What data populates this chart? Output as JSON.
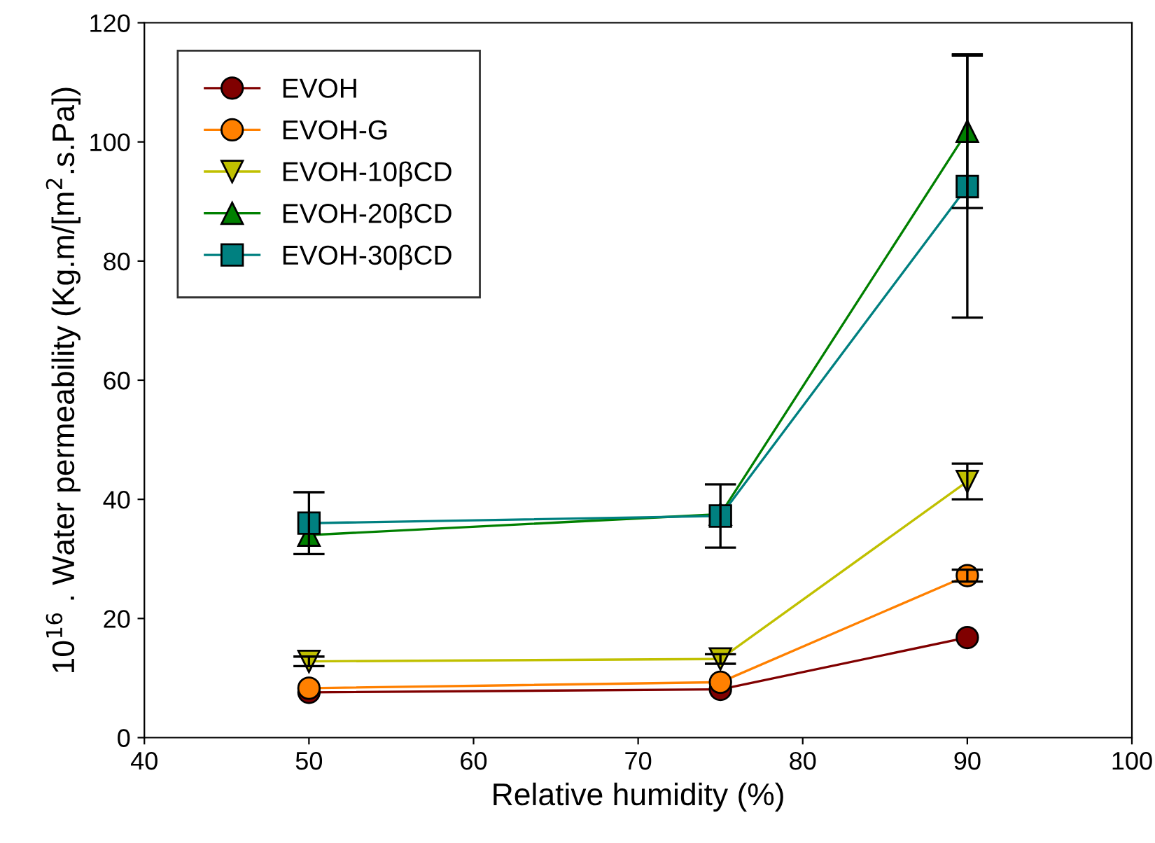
{
  "chart_data": {
    "type": "line",
    "xlabel": "Relative humidity (%)",
    "ylabel": "10$^{16}$ . Water permeability (Kg.m/[m$^{2}$.s.Pa])",
    "x": [
      50,
      75,
      90
    ],
    "xlim": [
      40,
      100
    ],
    "xticks": [
      40,
      50,
      60,
      70,
      80,
      90,
      100
    ],
    "ylim": [
      0,
      120
    ],
    "yticks": [
      0,
      20,
      40,
      60,
      80,
      100,
      120
    ],
    "grid": false,
    "legend": "top left",
    "line_style": "solid",
    "series": [
      {
        "name": "EVOH",
        "color": "#800000",
        "marker": "circle",
        "values": [
          7.6,
          8.1,
          16.8
        ],
        "errors": [
          null,
          null,
          null
        ]
      },
      {
        "name": "EVOH-G",
        "color": "#ff8000",
        "marker": "circle",
        "values": [
          8.3,
          9.3,
          27.2
        ],
        "errors": [
          null,
          null,
          1
        ]
      },
      {
        "name": "EVOH-10βCD",
        "color": "#c0c000",
        "marker": "triangle_down",
        "values": [
          12.8,
          13.2,
          43
        ],
        "errors": [
          0.8,
          0.8,
          3
        ]
      },
      {
        "name": "EVOH-20βCD",
        "color": "#008000",
        "marker": "triangle",
        "values": [
          34,
          37.5,
          101.8
        ],
        "errors": [
          null,
          null,
          12.9
        ]
      },
      {
        "name": "EVOH-30βCD",
        "color": "#008080",
        "marker": "square",
        "values": [
          36,
          37.2,
          92.5
        ],
        "errors": [
          5.2,
          5.3,
          22
        ]
      }
    ]
  }
}
